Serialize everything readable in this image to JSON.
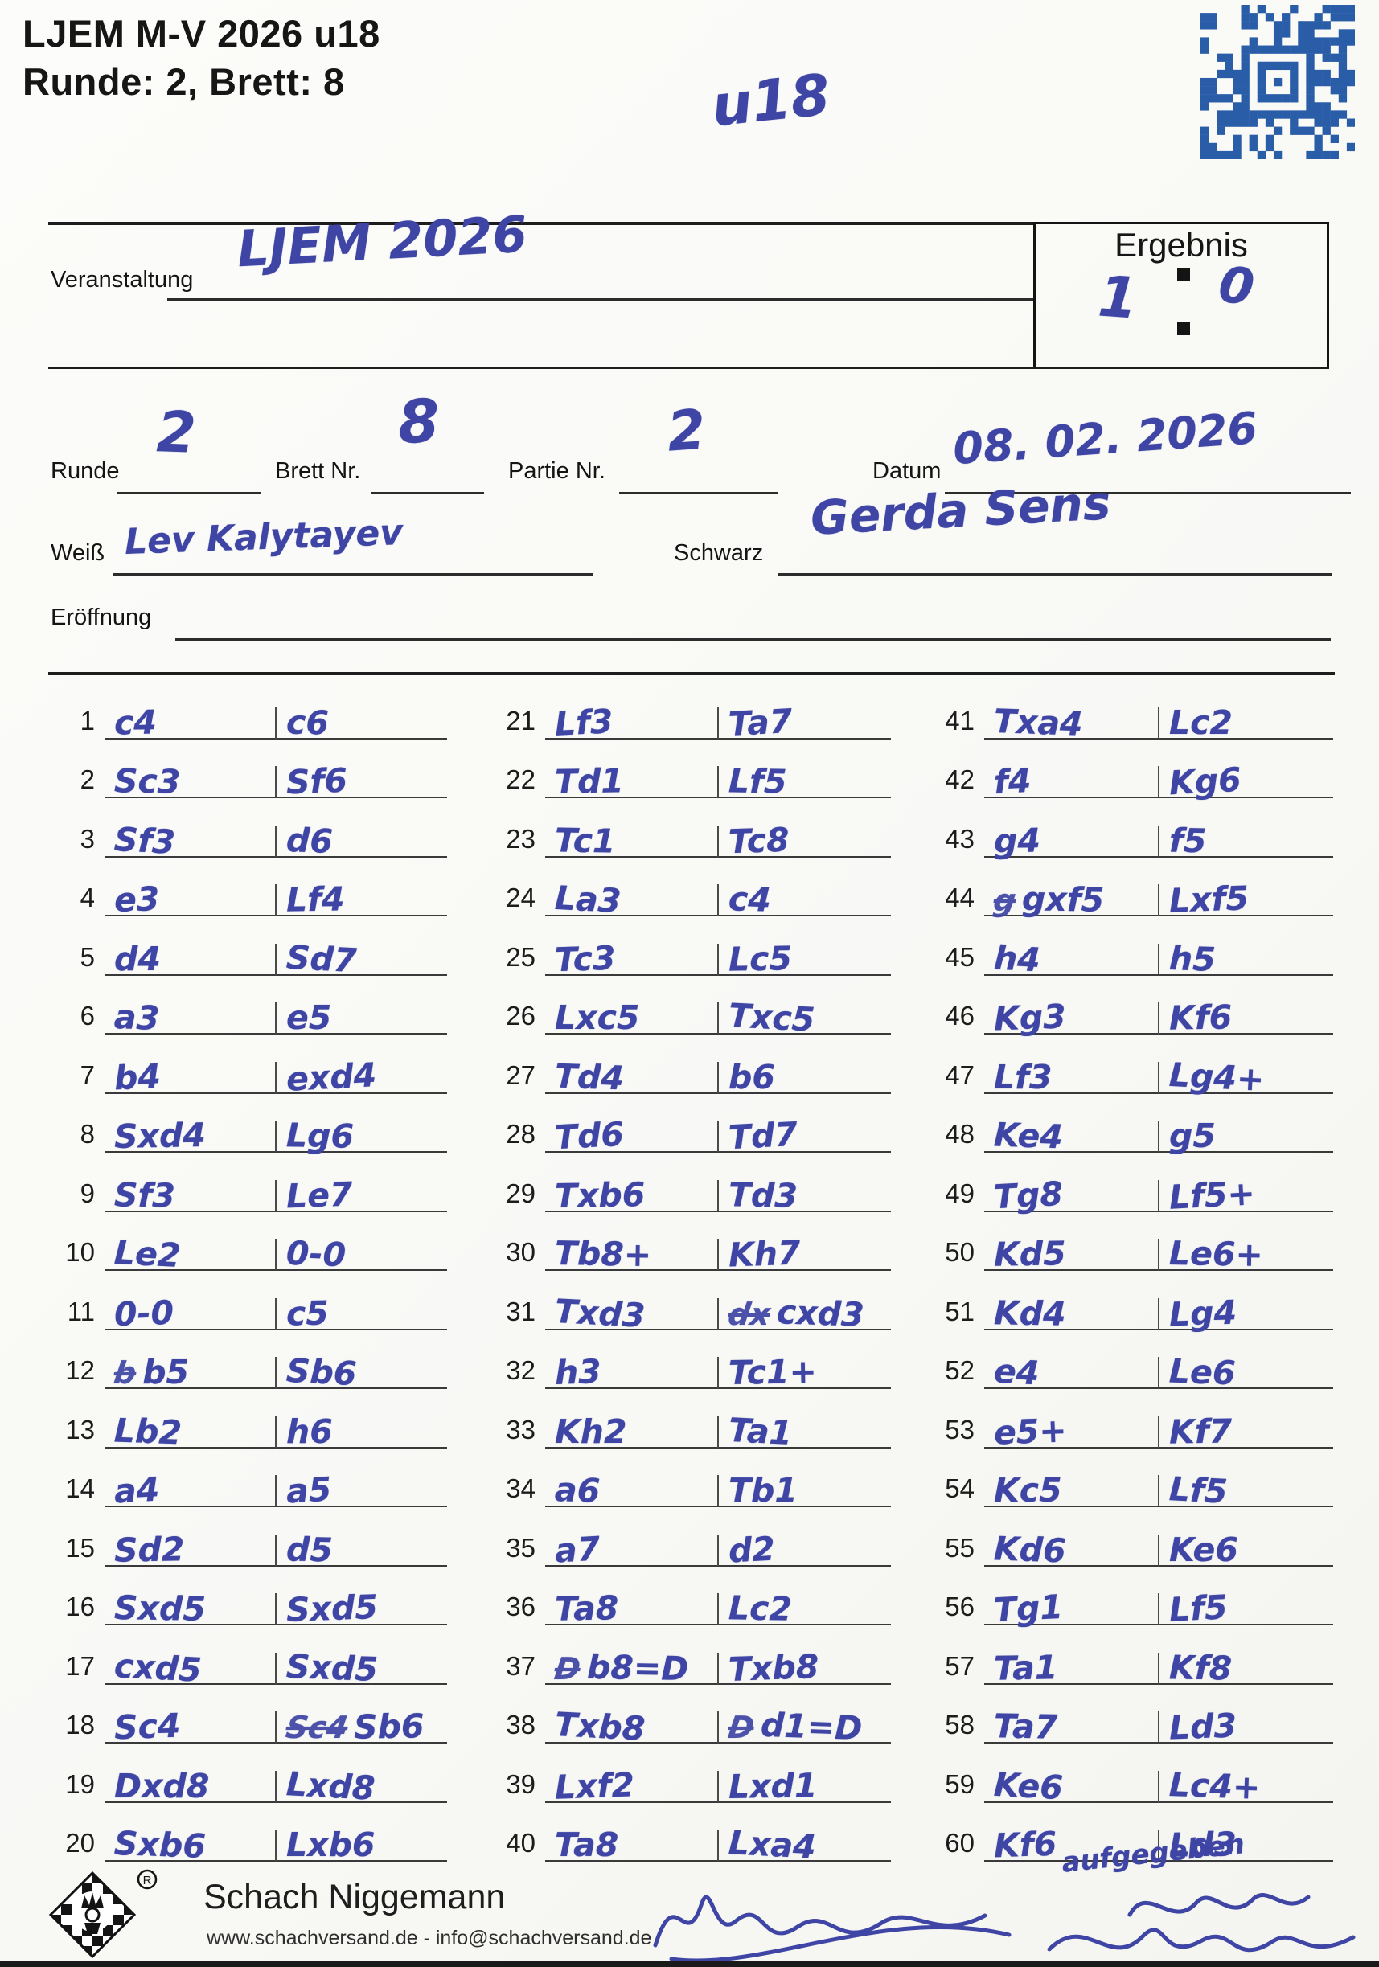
{
  "header": {
    "line1": "LJEM M-V 2026 u18",
    "line2": "Runde: 2, Brett: 8"
  },
  "labels": {
    "veranstaltung": "Veranstaltung",
    "ergebnis": "Ergebnis",
    "runde": "Runde",
    "brett": "Brett Nr.",
    "partie": "Partie Nr.",
    "datum": "Datum",
    "weiss": "Weiß",
    "schwarz": "Schwarz",
    "eroeffnung": "Eröffnung"
  },
  "handwritten": {
    "klasse": "u18",
    "veranstaltung": "LJEM 2026",
    "ergebnis_weiss": "1",
    "ergebnis_schwarz": "0",
    "runde": "2",
    "brett": "8",
    "partie": "2",
    "datum": "08. 02. 2026",
    "weiss": "Lev Kalytayev",
    "schwarz": "Gerda Sens",
    "note": "aufgegeben"
  },
  "moves": [
    {
      "n": 1,
      "w": "c4",
      "b": "c6"
    },
    {
      "n": 2,
      "w": "Sc3",
      "b": "Sf6"
    },
    {
      "n": 3,
      "w": "Sf3",
      "b": "d6"
    },
    {
      "n": 4,
      "w": "e3",
      "b": "Lf4"
    },
    {
      "n": 5,
      "w": "d4",
      "b": "Sd7"
    },
    {
      "n": 6,
      "w": "a3",
      "b": "e5"
    },
    {
      "n": 7,
      "w": "b4",
      "b": "exd4"
    },
    {
      "n": 8,
      "w": "Sxd4",
      "b": "Lg6"
    },
    {
      "n": 9,
      "w": "Sf3",
      "b": "Le7"
    },
    {
      "n": 10,
      "w": "Le2",
      "b": "0-0"
    },
    {
      "n": 11,
      "w": "0-0",
      "b": "c5"
    },
    {
      "n": 12,
      "w": "b5",
      "b": "Sb6",
      "wpre": "b"
    },
    {
      "n": 13,
      "w": "Lb2",
      "b": "h6"
    },
    {
      "n": 14,
      "w": "a4",
      "b": "a5"
    },
    {
      "n": 15,
      "w": "Sd2",
      "b": "d5"
    },
    {
      "n": 16,
      "w": "Sxd5",
      "b": "Sxd5"
    },
    {
      "n": 17,
      "w": "cxd5",
      "b": "Sxd5"
    },
    {
      "n": 18,
      "w": "Sc4",
      "b": "Sb6",
      "bpre": "Sc4"
    },
    {
      "n": 19,
      "w": "Dxd8",
      "b": "Lxd8"
    },
    {
      "n": 20,
      "w": "Sxb6",
      "b": "Lxb6"
    },
    {
      "n": 21,
      "w": "Lf3",
      "b": "Ta7"
    },
    {
      "n": 22,
      "w": "Td1",
      "b": "Lf5"
    },
    {
      "n": 23,
      "w": "Tc1",
      "b": "Tc8"
    },
    {
      "n": 24,
      "w": "La3",
      "b": "c4"
    },
    {
      "n": 25,
      "w": "Tc3",
      "b": "Lc5"
    },
    {
      "n": 26,
      "w": "Lxc5",
      "b": "Txc5"
    },
    {
      "n": 27,
      "w": "Td4",
      "b": "b6"
    },
    {
      "n": 28,
      "w": "Td6",
      "b": "Td7"
    },
    {
      "n": 29,
      "w": "Txb6",
      "b": "Td3"
    },
    {
      "n": 30,
      "w": "Tb8+",
      "b": "Kh7"
    },
    {
      "n": 31,
      "w": "Txd3",
      "b": "cxd3",
      "bpre": "dx"
    },
    {
      "n": 32,
      "w": "h3",
      "b": "Tc1+"
    },
    {
      "n": 33,
      "w": "Kh2",
      "b": "Ta1"
    },
    {
      "n": 34,
      "w": "a6",
      "b": "Tb1"
    },
    {
      "n": 35,
      "w": "a7",
      "b": "d2"
    },
    {
      "n": 36,
      "w": "Ta8",
      "b": "Lc2"
    },
    {
      "n": 37,
      "w": "b8=D",
      "b": "Txb8",
      "wpre": "D"
    },
    {
      "n": 38,
      "w": "Txb8",
      "b": "d1=D",
      "bpre": "D"
    },
    {
      "n": 39,
      "w": "Lxf2",
      "b": "Lxd1"
    },
    {
      "n": 40,
      "w": "Ta8",
      "b": "Lxa4"
    },
    {
      "n": 41,
      "w": "Txa4",
      "b": "Lc2"
    },
    {
      "n": 42,
      "w": "f4",
      "b": "Kg6"
    },
    {
      "n": 43,
      "w": "g4",
      "b": "f5"
    },
    {
      "n": 44,
      "w": "gxf5",
      "b": "Lxf5",
      "wpre": "g"
    },
    {
      "n": 45,
      "w": "h4",
      "b": "h5"
    },
    {
      "n": 46,
      "w": "Kg3",
      "b": "Kf6"
    },
    {
      "n": 47,
      "w": "Lf3",
      "b": "Lg4+"
    },
    {
      "n": 48,
      "w": "Ke4",
      "b": "g5"
    },
    {
      "n": 49,
      "w": "Tg8",
      "b": "Lf5+"
    },
    {
      "n": 50,
      "w": "Kd5",
      "b": "Le6+"
    },
    {
      "n": 51,
      "w": "Kd4",
      "b": "Lg4"
    },
    {
      "n": 52,
      "w": "e4",
      "b": "Le6"
    },
    {
      "n": 53,
      "w": "e5+",
      "b": "Kf7"
    },
    {
      "n": 54,
      "w": "Kc5",
      "b": "Lf5"
    },
    {
      "n": 55,
      "w": "Kd6",
      "b": "Ke6"
    },
    {
      "n": 56,
      "w": "Tg1",
      "b": "Lf5"
    },
    {
      "n": 57,
      "w": "Ta1",
      "b": "Kf8"
    },
    {
      "n": 58,
      "w": "Ta7",
      "b": "Ld3"
    },
    {
      "n": 59,
      "w": "Ke6",
      "b": "Lc4+"
    },
    {
      "n": 60,
      "w": "Kf6",
      "b": "Ld3"
    }
  ],
  "footer": {
    "brand": "Schach Niggemann",
    "contact": "www.schachversand.de  -  info@schachversand.de"
  },
  "colors": {
    "ink": "#3e45a4",
    "qr": "#2a5da8",
    "line": "#1d1d1d"
  }
}
